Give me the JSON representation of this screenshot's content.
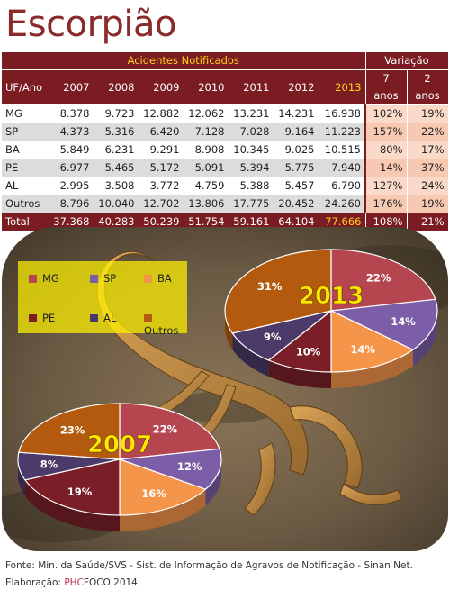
{
  "page": {
    "title": "Escorpião"
  },
  "table": {
    "group_header": "Acidentes Notificados",
    "variation_header": "Variação",
    "row_header": "UF/Ano",
    "years": [
      "2007",
      "2008",
      "2009",
      "2010",
      "2011",
      "2012",
      "2013"
    ],
    "var_cols": [
      "7 anos",
      "2 anos"
    ],
    "rows": [
      {
        "uf": "MG",
        "values": [
          "8.378",
          "9.723",
          "12.882",
          "12.062",
          "13.231",
          "14.231",
          "16.938"
        ],
        "v7": "102%",
        "v2": "19%"
      },
      {
        "uf": "SP",
        "values": [
          "4.373",
          "5.316",
          "6.420",
          "7.128",
          "7.028",
          "9.164",
          "11.223"
        ],
        "v7": "157%",
        "v2": "22%"
      },
      {
        "uf": "BA",
        "values": [
          "5.849",
          "6.231",
          "9.291",
          "8.908",
          "10.345",
          "9.025",
          "10.515"
        ],
        "v7": "80%",
        "v2": "17%"
      },
      {
        "uf": "PE",
        "values": [
          "6.977",
          "5.465",
          "5.172",
          "5.091",
          "5.394",
          "5.775",
          "7.940"
        ],
        "v7": "14%",
        "v2": "37%"
      },
      {
        "uf": "AL",
        "values": [
          "2.995",
          "3.508",
          "3.772",
          "4.759",
          "5.388",
          "5.457",
          "6.790"
        ],
        "v7": "127%",
        "v2": "24%"
      },
      {
        "uf": "Outros",
        "values": [
          "8.796",
          "10.040",
          "12.702",
          "13.806",
          "17.775",
          "20.452",
          "24.260"
        ],
        "v7": "176%",
        "v2": "19%"
      }
    ],
    "total": {
      "uf": "Total",
      "values": [
        "37.368",
        "40.283",
        "50.239",
        "51.754",
        "59.161",
        "64.104",
        "77.666"
      ],
      "v7": "108%",
      "v2": "21%"
    }
  },
  "legend": [
    {
      "label": "MG",
      "color": "#b5454f"
    },
    {
      "label": "SP",
      "color": "#7b5ea7"
    },
    {
      "label": "BA",
      "color": "#f5954a"
    },
    {
      "label": "PE",
      "color": "#7a1f28"
    },
    {
      "label": "AL",
      "color": "#4b3a6a"
    },
    {
      "label": "Outros",
      "color": "#b35a0e"
    }
  ],
  "chart_data": [
    {
      "type": "pie",
      "title": "2013",
      "categories": [
        "MG",
        "SP",
        "BA",
        "PE",
        "AL",
        "Outros"
      ],
      "values": [
        22,
        14,
        14,
        10,
        9,
        31
      ],
      "labels": [
        "22%",
        "14%",
        "14%",
        "10%",
        "9%",
        "31%"
      ]
    },
    {
      "type": "pie",
      "title": "2007",
      "categories": [
        "MG",
        "SP",
        "BA",
        "PE",
        "AL",
        "Outros"
      ],
      "values": [
        22,
        12,
        16,
        19,
        8,
        23
      ],
      "labels": [
        "22%",
        "12%",
        "16%",
        "19%",
        "8%",
        "23%"
      ]
    }
  ],
  "footer": {
    "source": "Fonte: Min. da Saúde/SVS - Sist. de Informação de Agravos de Notificação - Sinan Net.",
    "credit_prefix": "Elaboração: ",
    "credit_phc": "PHC",
    "credit_rest": "FOCO 2014"
  }
}
